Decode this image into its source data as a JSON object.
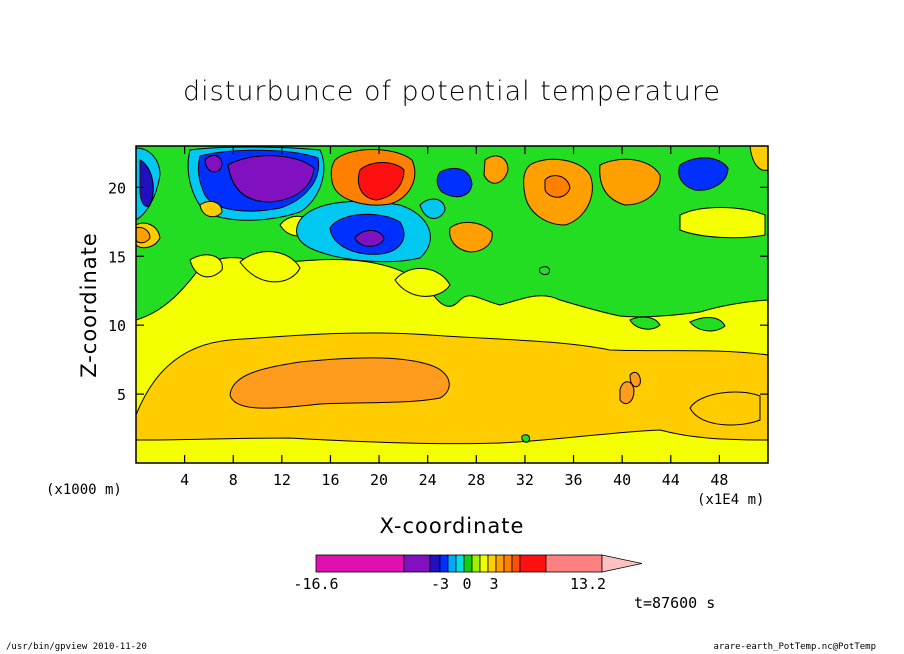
{
  "chart_data": {
    "type": "heatmap",
    "title": "disturbunce of potential temperature",
    "xlabel": "X-coordinate",
    "ylabel": "Z-coordinate",
    "x_unit_left": "(x1000 m)",
    "x_unit_right": "(x1E4 m)",
    "xlim": [
      0,
      52
    ],
    "ylim": [
      0,
      23
    ],
    "x_ticks": [
      4,
      8,
      12,
      16,
      20,
      24,
      28,
      32,
      36,
      40,
      44,
      48
    ],
    "y_ticks": [
      5,
      10,
      15,
      20
    ],
    "colorbar": {
      "min": -16.6,
      "max": 13.2,
      "tick_labels": [
        "-16.6",
        "-3",
        "0",
        "3",
        "13.2"
      ],
      "colors": [
        "#e010b0",
        "#8010c0",
        "#2010c0",
        "#0030ff",
        "#00a8ff",
        "#00e0e0",
        "#10d010",
        "#a0f000",
        "#f0ff00",
        "#ffd000",
        "#ffa000",
        "#ff8000",
        "#ff5000",
        "#ff1010",
        "#ff8080",
        "#ffc0c0"
      ]
    },
    "fields": {
      "background": "#f4ff00",
      "upper_layer_color": "#22dd22",
      "mid_warm_band_color": "#ffcc00",
      "core_warm_color": "#ff9c1e"
    }
  },
  "time_label": "t=87600 s",
  "footer_left": "/usr/bin/gpview   2010-11-20",
  "footer_right": "arare-earth_PotTemp.nc@PotTemp"
}
